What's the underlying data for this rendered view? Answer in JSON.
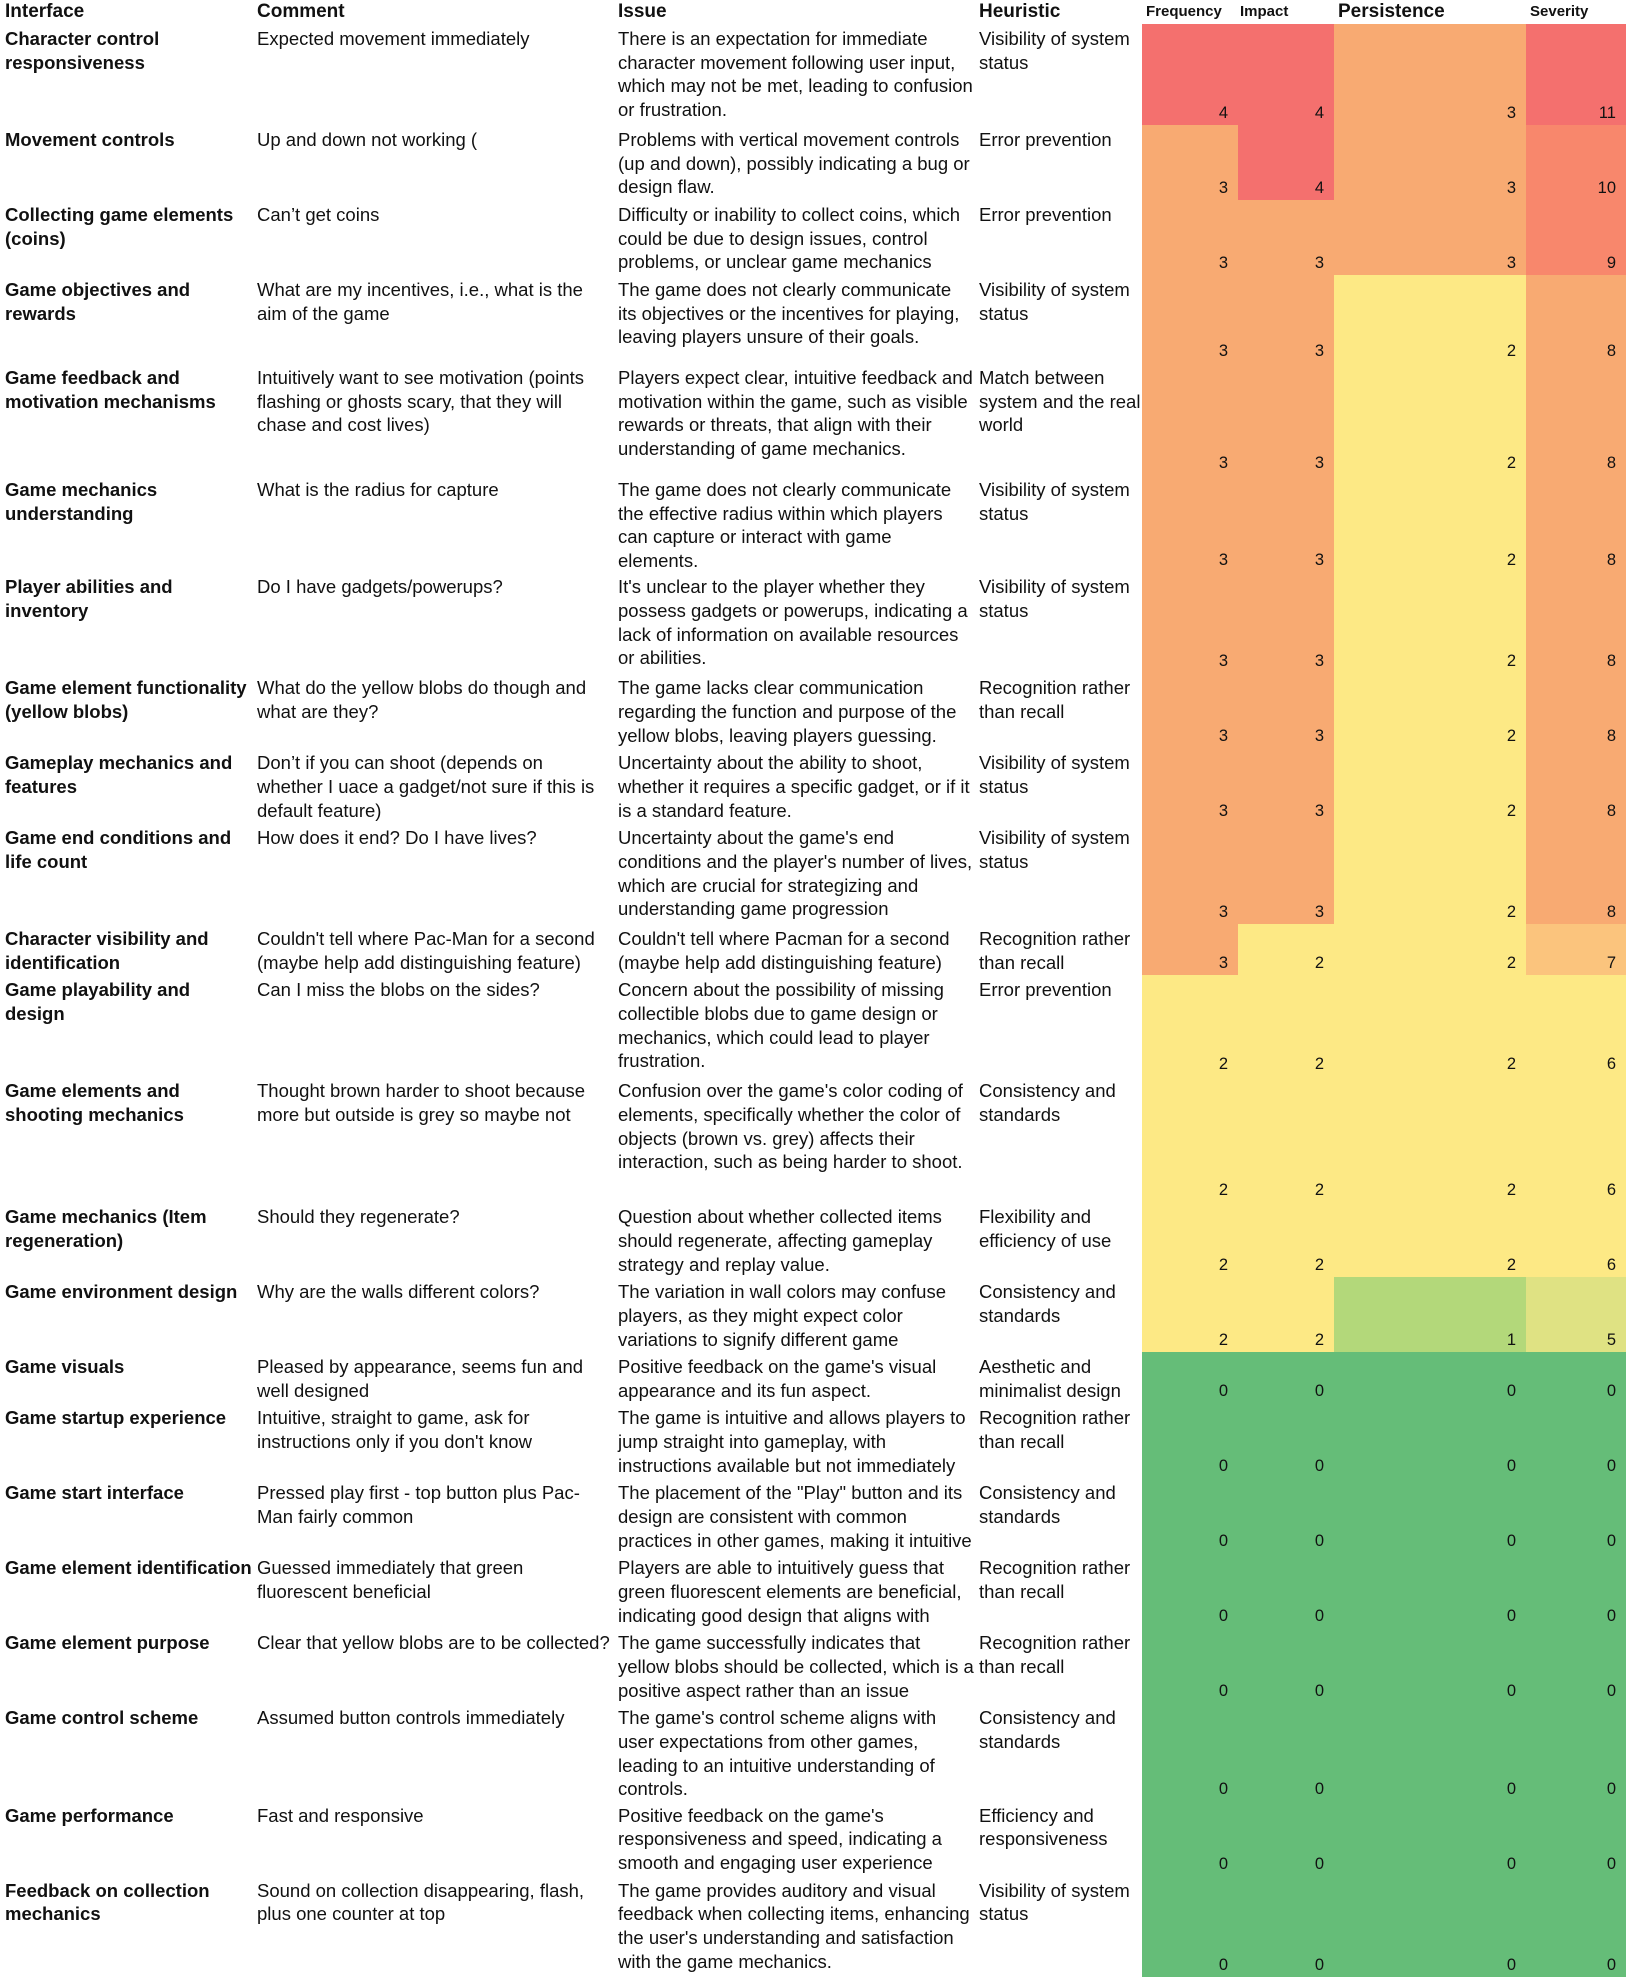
{
  "headers": {
    "interface": "Interface",
    "comment": "Comment",
    "issue": "Issue",
    "heuristic": "Heuristic",
    "frequency": "Frequency",
    "impact": "Impact",
    "persistence": "Persistence",
    "severity": "Severity"
  },
  "palette": {
    "red": "#f4706e",
    "red_orange": "#f8876c",
    "orange": "#f8aa72",
    "light_orange": "#fbc47d",
    "yellow": "#fde985",
    "yellow_green": "#dfe283",
    "light_green": "#b3d87a",
    "green": "#65bd78"
  },
  "rows": [
    {
      "interface": "Character control responsiveness",
      "comment": "Expected movement immediately",
      "issue": "There is an expectation for immediate character movement following user input, which may not be met, leading to confusion or frustration.",
      "heuristic": "Visibility of system status",
      "frequency": 4,
      "impact": 4,
      "persistence": 3,
      "severity": 11
    },
    {
      "interface": "Movement controls",
      "comment": "Up and down not working (",
      "issue": "Problems with vertical movement controls (up and down), possibly indicating a bug or design flaw.",
      "heuristic": "Error prevention",
      "frequency": 3,
      "impact": 4,
      "persistence": 3,
      "severity": 10
    },
    {
      "interface": "Collecting game elements (coins)",
      "comment": "Can’t get coins",
      "issue": "Difficulty or inability to collect coins, which could be due to design issues, control problems, or unclear game mechanics",
      "heuristic": "Error prevention",
      "frequency": 3,
      "impact": 3,
      "persistence": 3,
      "severity": 9
    },
    {
      "interface": "Game objectives and rewards",
      "comment": "What are my incentives, i.e., what is the aim of the game",
      "issue": "The game does not clearly communicate its objectives or the incentives for playing, leaving players unsure of their goals.",
      "heuristic": "Visibility of system status",
      "frequency": 3,
      "impact": 3,
      "persistence": 2,
      "severity": 8
    },
    {
      "interface": "Game feedback and motivation mechanisms",
      "comment": "Intuitively want to see motivation (points flashing or ghosts scary, that they will chase and cost lives)",
      "issue": "Players expect clear, intuitive feedback and motivation within the game, such as visible rewards or threats, that align with their understanding of game mechanics.",
      "heuristic": "Match between system and the real world",
      "frequency": 3,
      "impact": 3,
      "persistence": 2,
      "severity": 8
    },
    {
      "interface": "Game mechanics understanding",
      "comment": "What is the radius for capture",
      "issue": "The game does not clearly communicate the effective radius within which players can capture or interact with game elements.",
      "heuristic": "Visibility of system status",
      "frequency": 3,
      "impact": 3,
      "persistence": 2,
      "severity": 8
    },
    {
      "interface": "Player abilities and inventory",
      "comment": "Do I have gadgets/powerups?",
      "issue": "It's unclear to the player whether they possess gadgets or powerups, indicating a lack of information on available resources or abilities.",
      "heuristic": "Visibility of system status",
      "frequency": 3,
      "impact": 3,
      "persistence": 2,
      "severity": 8
    },
    {
      "interface": "Game element functionality (yellow blobs)",
      "comment": "What do the yellow blobs do though and what are they?",
      "issue": "The game lacks clear communication regarding the function and purpose of the yellow blobs, leaving players guessing.",
      "heuristic": "Recognition rather than recall",
      "frequency": 3,
      "impact": 3,
      "persistence": 2,
      "severity": 8
    },
    {
      "interface": "Gameplay mechanics and features",
      "comment": "Don’t if you can shoot (depends on whether I uace a gadget/not sure if this is default feature)",
      "issue": "Uncertainty about the ability to shoot, whether it requires a specific gadget, or if it is a standard feature.",
      "heuristic": "Visibility of system status",
      "frequency": 3,
      "impact": 3,
      "persistence": 2,
      "severity": 8
    },
    {
      "interface": "Game end conditions and life count",
      "comment": "How does it end? Do I have lives?",
      "issue": "Uncertainty about the game's end conditions and the player's number of lives, which are crucial for strategizing and understanding game progression",
      "heuristic": "Visibility of system status",
      "frequency": 3,
      "impact": 3,
      "persistence": 2,
      "severity": 8
    },
    {
      "interface": "Character visibility and identification",
      "comment": "Couldn't tell where Pac-Man for a second (maybe help add distinguishing feature)",
      "issue": "Couldn't tell where Pacman for a second (maybe help add distinguishing feature)",
      "heuristic": "Recognition rather than recall",
      "frequency": 3,
      "impact": 2,
      "persistence": 2,
      "severity": 7
    },
    {
      "interface": "Game playability and design",
      "comment": "Can I miss the blobs on the sides?",
      "issue": "Concern about the possibility of missing collectible blobs due to game design or mechanics, which could lead to player frustration.",
      "heuristic": "Error prevention",
      "frequency": 2,
      "impact": 2,
      "persistence": 2,
      "severity": 6
    },
    {
      "interface": "Game elements and shooting mechanics",
      "comment": "Thought brown harder to shoot because more  but outside is grey so maybe not",
      "issue": "Confusion over the game's color coding of elements, specifically whether the color of objects (brown vs. grey) affects their interaction, such as being harder to shoot.",
      "heuristic": "Consistency and standards",
      "frequency": 2,
      "impact": 2,
      "persistence": 2,
      "severity": 6
    },
    {
      "interface": "Game mechanics (Item regeneration)",
      "comment": "Should they regenerate?",
      "issue": "Question about whether collected items should regenerate, affecting gameplay strategy and replay value.",
      "heuristic": "Flexibility and efficiency of use",
      "frequency": 2,
      "impact": 2,
      "persistence": 2,
      "severity": 6
    },
    {
      "interface": "Game environment design",
      "comment": "Why are the walls different colors?",
      "issue": "The variation in wall colors may confuse players, as they might expect color variations to signify different game",
      "heuristic": "Consistency and standards",
      "frequency": 2,
      "impact": 2,
      "persistence": 1,
      "severity": 5
    },
    {
      "interface": "Game visuals",
      "comment": "Pleased by appearance, seems fun and well designed",
      "issue": "Positive feedback on the game's visual appearance and its fun aspect.",
      "heuristic": "Aesthetic and minimalist design",
      "frequency": 0,
      "impact": 0,
      "persistence": 0,
      "severity": 0
    },
    {
      "interface": "Game startup experience",
      "comment": "Intuitive, straight to game, ask for instructions only if you don't know",
      "issue": "The game is intuitive and allows players to jump straight into gameplay, with instructions available but not immediately",
      "heuristic": "Recognition rather than recall",
      "frequency": 0,
      "impact": 0,
      "persistence": 0,
      "severity": 0
    },
    {
      "interface": "Game start interface",
      "comment": "Pressed play first - top button plus Pac-Man fairly common",
      "issue": "The placement of the \"Play\" button and its design are consistent with common practices in other games, making it intuitive",
      "heuristic": "Consistency and standards",
      "frequency": 0,
      "impact": 0,
      "persistence": 0,
      "severity": 0
    },
    {
      "interface": "Game element identification",
      "comment": "Guessed immediately that green fluorescent beneficial",
      "issue": "Players are able to intuitively guess that green fluorescent elements are beneficial, indicating good design that aligns with",
      "heuristic": "Recognition rather than recall",
      "frequency": 0,
      "impact": 0,
      "persistence": 0,
      "severity": 0
    },
    {
      "interface": "Game element purpose",
      "comment": "Clear that yellow blobs are to be collected?",
      "issue": "The game successfully indicates that yellow blobs should be collected, which is a positive aspect rather than an issue",
      "heuristic": "Recognition rather than recall",
      "frequency": 0,
      "impact": 0,
      "persistence": 0,
      "severity": 0
    },
    {
      "interface": "Game control scheme",
      "comment": "Assumed button controls immediately",
      "issue": "The game's control scheme aligns with user expectations from other games, leading to an intuitive understanding of controls.",
      "heuristic": "Consistency and standards",
      "frequency": 0,
      "impact": 0,
      "persistence": 0,
      "severity": 0
    },
    {
      "interface": "Game performance",
      "comment": "Fast and responsive",
      "issue": "Positive feedback on the game's responsiveness and speed, indicating a smooth and engaging user experience",
      "heuristic": "Efficiency and responsiveness",
      "frequency": 0,
      "impact": 0,
      "persistence": 0,
      "severity": 0
    },
    {
      "interface": "Feedback on collection mechanics",
      "comment": "Sound on collection disappearing, flash, plus one counter at top",
      "issue": "The game provides auditory and visual feedback when collecting items, enhancing the user's understanding and satisfaction with the game mechanics.",
      "heuristic": "Visibility of system status",
      "frequency": 0,
      "impact": 0,
      "persistence": 0,
      "severity": 0
    }
  ]
}
